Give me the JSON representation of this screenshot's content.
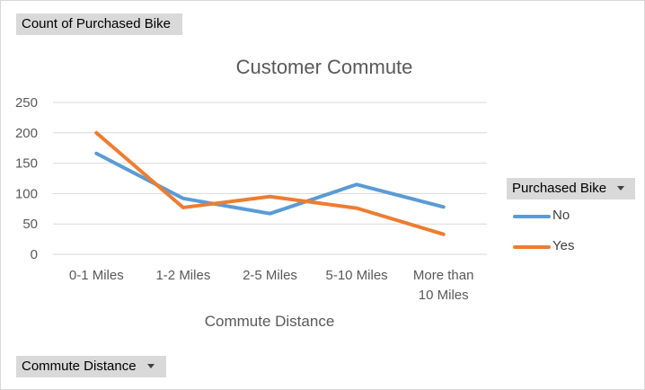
{
  "buttons": {
    "value_field": "Count of Purchased Bike",
    "axis_field": "Commute Distance",
    "legend_field": "Purchased Bike"
  },
  "icons": {
    "dropdown": "chevron-down-icon"
  },
  "chart_data": {
    "type": "line",
    "title": "Customer Commute",
    "xlabel": "Commute Distance",
    "ylabel": "",
    "categories": [
      "0-1 Miles",
      "1-2 Miles",
      "2-5 Miles",
      "5-10 Miles",
      "More than 10 Miles"
    ],
    "category_lines": [
      [
        "0-1 Miles"
      ],
      [
        "1-2 Miles"
      ],
      [
        "2-5 Miles"
      ],
      [
        "5-10 Miles"
      ],
      [
        "More than",
        "10 Miles"
      ]
    ],
    "series": [
      {
        "name": "No",
        "color": "#5b9bd5",
        "values": [
          166,
          92,
          67,
          115,
          78
        ]
      },
      {
        "name": "Yes",
        "color": "#ed7d31",
        "values": [
          200,
          77,
          95,
          76,
          33
        ]
      }
    ],
    "ylim": [
      0,
      250
    ],
    "yticks": [
      0,
      50,
      100,
      150,
      200,
      250
    ],
    "grid": true,
    "legend_position": "right"
  }
}
